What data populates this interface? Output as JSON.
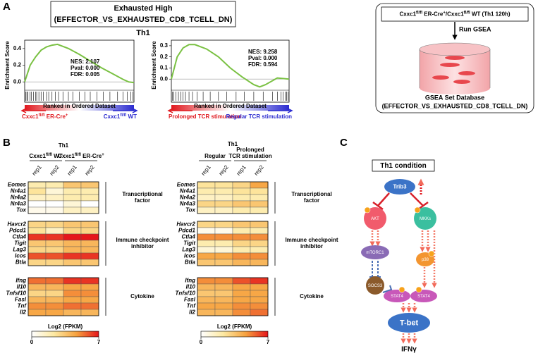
{
  "panel_a": {
    "label": "A",
    "title_lines": [
      "Exhausted High",
      "(EFFECTOR_VS_EXHAUSTED_CD8_TCELL_DN)"
    ],
    "condition": "Th1",
    "gsea": [
      {
        "y_label": "Enrichment Score",
        "x_label": "Ranked in Ordered Dataset",
        "stats": [
          "NES: 2.107",
          "Pval: 0.000",
          "FDR: 0.005"
        ],
        "left_label": [
          {
            "text": "Cxxc1"
          },
          {
            "text": "fl/fl",
            "sup": true
          },
          {
            "text": " ER-Cre"
          },
          {
            "text": "+",
            "sup": true
          }
        ],
        "right_label": [
          {
            "text": "Cxxc1"
          },
          {
            "text": "fl/fl",
            "sup": true
          },
          {
            "text": " WT"
          }
        ],
        "left_color": "#e0191f",
        "right_color": "#2b2bd0",
        "curve_color": "#7ac143",
        "x": [
          0,
          0.05,
          0.1,
          0.15,
          0.2,
          0.25,
          0.3,
          0.4,
          0.5,
          0.6,
          0.7,
          0.8,
          0.9,
          0.95,
          1
        ],
        "y": [
          0,
          0.2,
          0.3,
          0.38,
          0.42,
          0.44,
          0.45,
          0.4,
          0.33,
          0.25,
          0.17,
          0.1,
          0.03,
          0,
          -0.01
        ],
        "xlim": [
          0,
          1
        ],
        "ylim": [
          -0.1,
          0.5
        ],
        "yticks": [
          {
            "value": 0,
            "label": "0.0"
          },
          0.2,
          0.4
        ],
        "hits": [
          0.01,
          0.02,
          0.03,
          0.05,
          0.06,
          0.08,
          0.1,
          0.11,
          0.13,
          0.15,
          0.17,
          0.2,
          0.22,
          0.25,
          0.28,
          0.31,
          0.35,
          0.4,
          0.44,
          0.5,
          0.55,
          0.6,
          0.66,
          0.72,
          0.78,
          0.85,
          0.9,
          0.94,
          0.97,
          0.99
        ]
      },
      {
        "y_label": "Enrichment Score",
        "x_label": "Ranked in Ordered Dataset",
        "stats": [
          "NES: 9.258",
          "Pval: 0.000",
          "FDR: 0.594"
        ],
        "left_label": [
          {
            "text": "Prolonged TCR stimulation"
          }
        ],
        "right_label": [
          {
            "text": "Regular TCR stimulation"
          }
        ],
        "left_color": "#e0191f",
        "right_color": "#2b2bd0",
        "curve_color": "#7ac143",
        "x": [
          0,
          0.05,
          0.1,
          0.15,
          0.2,
          0.3,
          0.4,
          0.5,
          0.6,
          0.7,
          0.75,
          0.8,
          0.9,
          1
        ],
        "y": [
          0,
          0.2,
          0.28,
          0.31,
          0.31,
          0.27,
          0.2,
          0.1,
          0.02,
          -0.05,
          -0.07,
          -0.05,
          0.01,
          0
        ],
        "xlim": [
          0,
          1
        ],
        "ylim": [
          -0.1,
          0.35
        ],
        "yticks": [
          {
            "value": 0,
            "label": "0.0"
          },
          0.1,
          0.2,
          0.3
        ],
        "hits": [
          0.01,
          0.02,
          0.04,
          0.06,
          0.08,
          0.1,
          0.12,
          0.15,
          0.18,
          0.22,
          0.27,
          0.33,
          0.4,
          0.47,
          0.55,
          0.62,
          0.7,
          0.78,
          0.86,
          0.9,
          0.93,
          0.95,
          0.97,
          0.98,
          0.99
        ]
      }
    ],
    "workflow": {
      "input": [
        {
          "text": "Cxxc1"
        },
        {
          "text": "fl/fl",
          "sup": true
        },
        {
          "text": " ER-Cre"
        },
        {
          "text": "+",
          "sup": true
        },
        {
          "text": "/Cxxc1"
        },
        {
          "text": "fl/fl",
          "sup": true
        },
        {
          "text": " WT (Th1 120h)"
        }
      ],
      "step": "Run GSEA",
      "database_lines": [
        "GSEA Set Database",
        "(EFFECTOR_VS_EXHAUSTED_CD8_TCELL_DN)"
      ]
    }
  },
  "panel_b": {
    "label": "B",
    "colormap": [
      "#ffffff",
      "#fde9a2",
      "#f6a23f",
      "#e5161b"
    ],
    "heatmaps": [
      {
        "title": "Th1",
        "groups": [
          {
            "label_lines": [
              [
                {
                  "text": "Cxxc1"
                },
                {
                  "text": "fl/fl",
                  "sup": true
                },
                {
                  "text": " WT"
                }
              ]
            ],
            "columns": [
              "rep1",
              "rep2"
            ]
          },
          {
            "label_lines": [
              [
                {
                  "text": "Cxxc1"
                },
                {
                  "text": "fl/fl",
                  "sup": true
                },
                {
                  "text": " ER-Cre"
                },
                {
                  "text": "+",
                  "sup": true
                }
              ]
            ],
            "columns": [
              "rep1",
              "rep2"
            ]
          }
        ],
        "row_groups": [
          {
            "label_lines": [
              "Transcriptional",
              "factor"
            ],
            "rows": [
              "Eomes",
              "Nr4a1",
              "Nr4a2",
              "Nr4a3",
              "Tox"
            ],
            "values": [
              [
                2,
                2,
                3.5,
                3.5
              ],
              [
                2.5,
                1,
                2,
                2
              ],
              [
                1.5,
                1.5,
                2,
                2
              ],
              [
                0,
                0,
                1,
                0
              ],
              [
                0.5,
                0.5,
                1.5,
                1.5
              ]
            ]
          },
          {
            "label_lines": [
              "Immune checkpoint",
              "inhibitor"
            ],
            "rows": [
              "Havcr2",
              "Pdcd1",
              "Ctla4",
              "Tigit",
              "Lag3",
              "Icos",
              "Btla"
            ],
            "values": [
              [
                3,
                3,
                3.5,
                3.5
              ],
              [
                2.5,
                1.5,
                3,
                3
              ],
              [
                6.5,
                6.5,
                7,
                7
              ],
              [
                3.5,
                3.5,
                4,
                4
              ],
              [
                3,
                3,
                4,
                4
              ],
              [
                6,
                6,
                6.5,
                6.5
              ],
              [
                3,
                3,
                3.5,
                3.5
              ]
            ]
          },
          {
            "label_lines": [
              "Cytokine"
            ],
            "rows": [
              "Ifng",
              "Il10",
              "Tnfsf10",
              "Fasl",
              "Tnf",
              "Il2"
            ],
            "values": [
              [
                5.5,
                5.5,
                6.5,
                6.5
              ],
              [
                4,
                4,
                4.5,
                4.5
              ],
              [
                3,
                3,
                5,
                5
              ],
              [
                4,
                4,
                4.5,
                4.5
              ],
              [
                5,
                5,
                5.5,
                5.5
              ],
              [
                4.5,
                4.5,
                4,
                4
              ]
            ]
          }
        ],
        "colorbar": {
          "label": "Log2 (FPKM)",
          "lim": [
            0,
            7
          ],
          "ticks": [
            0,
            7
          ]
        }
      },
      {
        "title": "Th1",
        "groups": [
          {
            "label_lines": [
              [
                {
                  "text": "Regular"
                }
              ]
            ],
            "columns": [
              "rep1",
              "rep2"
            ]
          },
          {
            "label_lines": [
              [
                {
                  "text": "Prolonged"
                }
              ],
              [
                {
                  "text": "TCR stimulation"
                }
              ]
            ],
            "columns": [
              "rep1",
              "rep2"
            ]
          }
        ],
        "row_groups": [
          {
            "label_lines": [
              "Transcriptional",
              "factor"
            ],
            "rows": [
              "Eomes",
              "Nr4a1",
              "Nr4a2",
              "Nr4a3",
              "Tox"
            ],
            "values": [
              [
                2.5,
                2.5,
                3,
                4.5
              ],
              [
                2,
                2,
                2.5,
                2.5
              ],
              [
                1.5,
                1.5,
                2,
                2
              ],
              [
                3,
                3,
                3.5,
                3.5
              ],
              [
                1.5,
                1.5,
                2,
                2
              ]
            ]
          },
          {
            "label_lines": [
              "Immune checkpoint",
              "inhibitor"
            ],
            "rows": [
              "Havcr2",
              "Pdcd1",
              "Ctla4",
              "Tigit",
              "Lag3",
              "Icos",
              "Btla"
            ],
            "values": [
              [
                3,
                3,
                3.5,
                3.5
              ],
              [
                0.5,
                0.5,
                2,
                2
              ],
              [
                5,
                5,
                5,
                5
              ],
              [
                2,
                2,
                3,
                3
              ],
              [
                1,
                1,
                2,
                2
              ],
              [
                4.5,
                4.5,
                5,
                5
              ],
              [
                3.5,
                3.5,
                4,
                4
              ]
            ]
          },
          {
            "label_lines": [
              "Cytokine"
            ],
            "rows": [
              "Ifng",
              "Il10",
              "Tnfsf10",
              "Fasl",
              "Tnf",
              "Il2"
            ],
            "values": [
              [
                5,
                5,
                6,
                6.5
              ],
              [
                4,
                4,
                4.5,
                4.5
              ],
              [
                3.5,
                3.5,
                4.5,
                4.5
              ],
              [
                4,
                4,
                4.5,
                4.5
              ],
              [
                4.5,
                4.5,
                5,
                5
              ],
              [
                4,
                4,
                5,
                5.5
              ]
            ]
          }
        ],
        "colorbar": {
          "label": "Log2 (FPKM)",
          "lim": [
            0,
            7
          ],
          "ticks": [
            0,
            7
          ]
        }
      }
    ]
  },
  "panel_c": {
    "label": "C",
    "title": "Th1 condition",
    "nodes": [
      {
        "label": "Trib3"
      },
      {
        "label": "AKT"
      },
      {
        "label": "MKKs"
      },
      {
        "label": "mTORC1"
      },
      {
        "label": "SOCS3"
      },
      {
        "label": "p38"
      },
      {
        "label": "STAT4"
      },
      {
        "label": "STAT4"
      },
      {
        "label": "T-bet"
      },
      {
        "label": "IFNγ"
      }
    ]
  }
}
